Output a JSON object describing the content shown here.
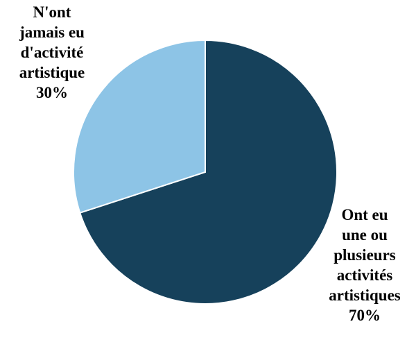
{
  "chart_data": {
    "type": "pie",
    "title": "",
    "slices": [
      {
        "label_lines": [
          "Ont eu",
          "une ou",
          "plusieurs",
          "activités",
          "artistiques"
        ],
        "value": 70,
        "value_label": "70%",
        "color": "#16415b"
      },
      {
        "label_lines": [
          "N'ont",
          "jamais eu",
          "d'activité",
          "artistique"
        ],
        "value": 30,
        "value_label": "30%",
        "color": "#8dc4e6"
      }
    ],
    "start_angle_deg": 0,
    "direction": "clockwise",
    "legend": "none",
    "slice_border_color": "#ffffff"
  }
}
